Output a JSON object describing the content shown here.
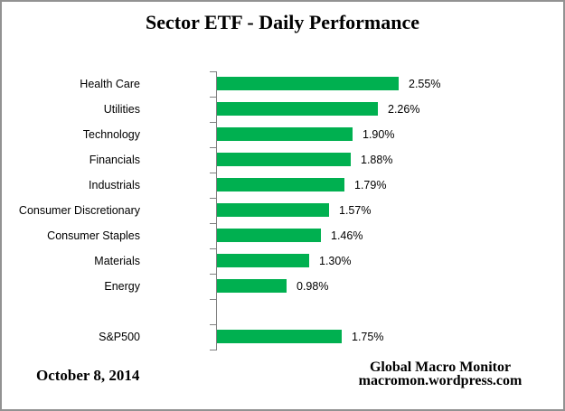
{
  "title": "Sector ETF - Daily Performance",
  "chart_data": {
    "type": "bar",
    "orientation": "horizontal",
    "title": "Sector ETF - Daily Performance",
    "categories": [
      "Health Care",
      "Utilities",
      "Technology",
      "Financials",
      "Industrials",
      "Consumer Discretionary",
      "Consumer Staples",
      "Materials",
      "Energy",
      "",
      "S&P500"
    ],
    "values": [
      2.55,
      2.26,
      1.9,
      1.88,
      1.79,
      1.57,
      1.46,
      1.3,
      0.98,
      null,
      1.75
    ],
    "value_labels": [
      "2.55%",
      "2.26%",
      "1.90%",
      "1.88%",
      "1.79%",
      "1.57%",
      "1.46%",
      "1.30%",
      "0.98%",
      "",
      "1.75%"
    ],
    "xlabel": "",
    "ylabel": "",
    "xlim": [
      0,
      3.0
    ],
    "grid": false,
    "legend": false,
    "bar_color": "#00B050",
    "axis_color": "#808080"
  },
  "footer": {
    "date": "October 8, 2014",
    "source_line1": "Global Macro Monitor",
    "source_line2": "macromon.wordpress.com"
  }
}
